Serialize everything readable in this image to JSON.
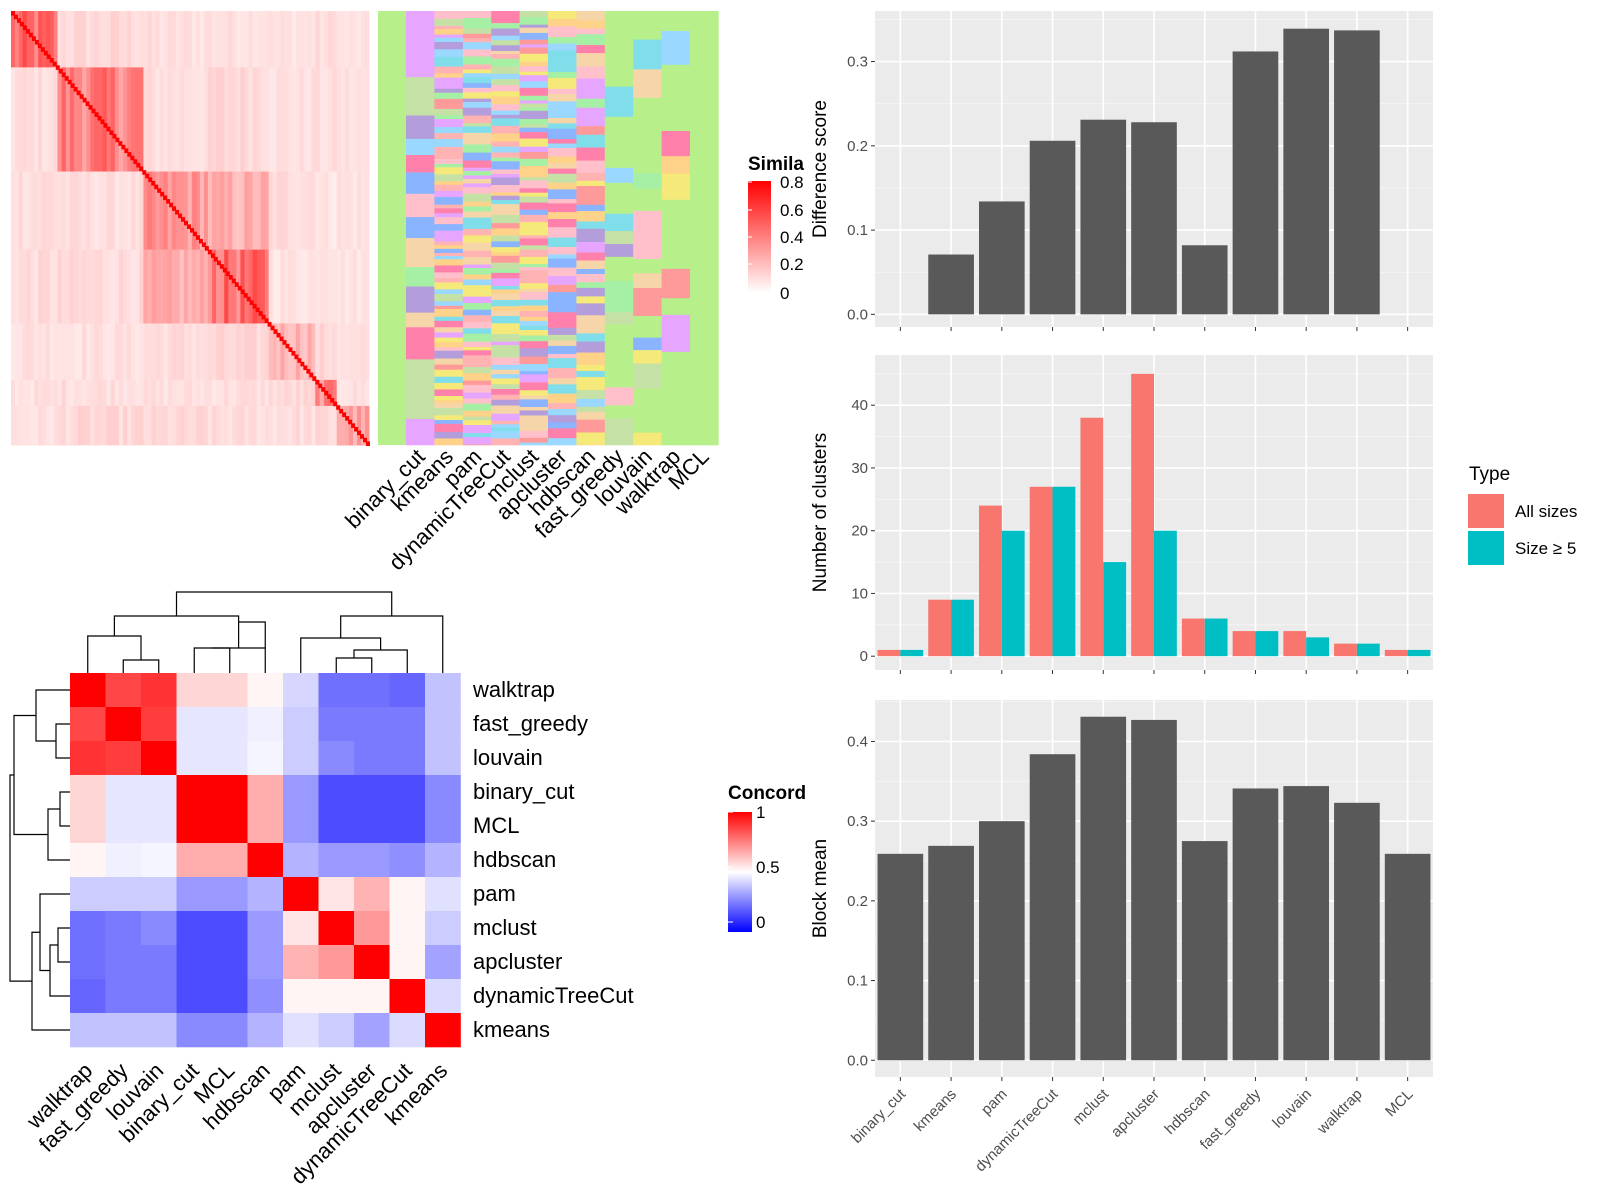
{
  "methods": [
    "binary_cut",
    "kmeans",
    "pam",
    "dynamicTreeCut",
    "mclust",
    "apcluster",
    "hdbscan",
    "fast_greedy",
    "louvain",
    "walktrap",
    "MCL"
  ],
  "similarity_panel": {
    "legend_title": "Simila",
    "legend_ticks": [
      "0.8",
      "0.6",
      "0.4",
      "0.2",
      "0"
    ],
    "colors": {
      "high": "#ff0000",
      "low": "#ffffff"
    }
  },
  "concordance_panel": {
    "legend_title": "Concord",
    "legend_ticks": [
      "1",
      "0.5",
      "0"
    ],
    "order": [
      "walktrap",
      "fast_greedy",
      "louvain",
      "binary_cut",
      "MCL",
      "hdbscan",
      "pam",
      "mclust",
      "apcluster",
      "dynamicTreeCut",
      "kmeans"
    ],
    "matrix": [
      [
        1.0,
        0.86,
        0.9,
        0.58,
        0.58,
        0.52,
        0.42,
        0.22,
        0.22,
        0.2,
        0.38
      ],
      [
        0.86,
        1.0,
        0.88,
        0.45,
        0.45,
        0.47,
        0.4,
        0.24,
        0.24,
        0.24,
        0.38
      ],
      [
        0.9,
        0.88,
        1.0,
        0.45,
        0.45,
        0.48,
        0.4,
        0.27,
        0.24,
        0.24,
        0.38
      ],
      [
        0.58,
        0.45,
        0.45,
        1.0,
        1.0,
        0.66,
        0.3,
        0.15,
        0.15,
        0.15,
        0.27
      ],
      [
        0.58,
        0.45,
        0.45,
        1.0,
        1.0,
        0.66,
        0.3,
        0.15,
        0.15,
        0.15,
        0.27
      ],
      [
        0.52,
        0.47,
        0.48,
        0.66,
        0.66,
        1.0,
        0.35,
        0.3,
        0.3,
        0.28,
        0.35
      ],
      [
        0.4,
        0.4,
        0.4,
        0.3,
        0.3,
        0.35,
        1.0,
        0.55,
        0.65,
        0.52,
        0.44
      ],
      [
        0.22,
        0.24,
        0.27,
        0.15,
        0.15,
        0.3,
        0.55,
        1.0,
        0.7,
        0.52,
        0.4
      ],
      [
        0.22,
        0.24,
        0.24,
        0.15,
        0.15,
        0.3,
        0.65,
        0.7,
        1.0,
        0.52,
        0.32
      ],
      [
        0.2,
        0.24,
        0.24,
        0.15,
        0.15,
        0.28,
        0.52,
        0.52,
        0.52,
        1.0,
        0.43
      ],
      [
        0.38,
        0.38,
        0.38,
        0.27,
        0.27,
        0.35,
        0.44,
        0.4,
        0.32,
        0.43,
        1.0
      ]
    ],
    "colors": {
      "high": "#ff0000",
      "mid": "#ffffff",
      "low": "#0000ff"
    }
  },
  "chart_data": [
    {
      "type": "bar",
      "categories": [
        "binary_cut",
        "kmeans",
        "pam",
        "dynamicTreeCut",
        "mclust",
        "apcluster",
        "hdbscan",
        "fast_greedy",
        "louvain",
        "walktrap",
        "MCL"
      ],
      "values": [
        0,
        0.071,
        0.134,
        0.206,
        0.231,
        0.228,
        0.082,
        0.312,
        0.339,
        0.337,
        0
      ],
      "ylabel": "Difference score",
      "ylim": [
        -0.015,
        0.36
      ],
      "yticks": [
        "0.0",
        "0.1",
        "0.2",
        "0.3"
      ],
      "ytick_values": [
        0,
        0.1,
        0.2,
        0.3
      ],
      "bar_color": "#595959"
    },
    {
      "type": "bar",
      "categories": [
        "binary_cut",
        "kmeans",
        "pam",
        "dynamicTreeCut",
        "mclust",
        "apcluster",
        "hdbscan",
        "fast_greedy",
        "louvain",
        "walktrap",
        "MCL"
      ],
      "series": [
        {
          "name": "All sizes",
          "values": [
            1,
            9,
            24,
            27,
            38,
            45,
            6,
            4,
            4,
            2,
            1
          ],
          "color": "#f8766d"
        },
        {
          "name": "Size ≥ 5",
          "values": [
            1,
            9,
            20,
            27,
            15,
            20,
            6,
            4,
            3,
            2,
            1
          ],
          "color": "#00bfc4"
        }
      ],
      "ylabel": "Number of clusters",
      "ylim": [
        -2.2,
        48
      ],
      "yticks": [
        "0",
        "10",
        "20",
        "30",
        "40"
      ],
      "ytick_values": [
        0,
        10,
        20,
        30,
        40
      ],
      "legend_title": "Type"
    },
    {
      "type": "bar",
      "categories": [
        "binary_cut",
        "kmeans",
        "pam",
        "dynamicTreeCut",
        "mclust",
        "apcluster",
        "hdbscan",
        "fast_greedy",
        "louvain",
        "walktrap",
        "MCL"
      ],
      "values": [
        0.259,
        0.269,
        0.3,
        0.384,
        0.431,
        0.427,
        0.275,
        0.341,
        0.344,
        0.323,
        0.259
      ],
      "ylabel": "Block mean",
      "ylim": [
        -0.021,
        0.452
      ],
      "yticks": [
        "0.0",
        "0.1",
        "0.2",
        "0.3",
        "0.4"
      ],
      "ytick_values": [
        0,
        0.1,
        0.2,
        0.3,
        0.4
      ],
      "bar_color": "#595959"
    }
  ]
}
